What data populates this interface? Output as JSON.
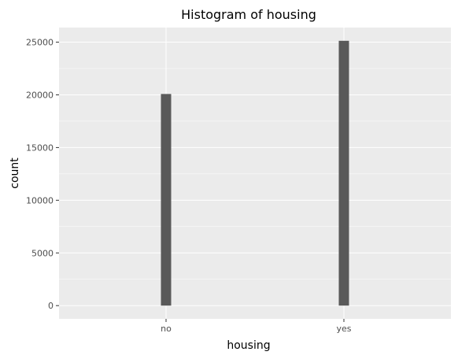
{
  "chart_data": {
    "type": "bar",
    "title": "Histogram of housing",
    "xlabel": "housing",
    "ylabel": "count",
    "categories": [
      "no",
      "yes"
    ],
    "values": [
      20081,
      25130
    ],
    "yticks": [
      0,
      5000,
      10000,
      15000,
      20000,
      25000
    ],
    "ylim": [
      -1256,
      26386
    ],
    "grid": true,
    "legend": "none",
    "colors": {
      "panel": "#ebebeb",
      "grid_major": "#ffffff",
      "bar": "#595959",
      "tick_mark": "#333333"
    }
  }
}
